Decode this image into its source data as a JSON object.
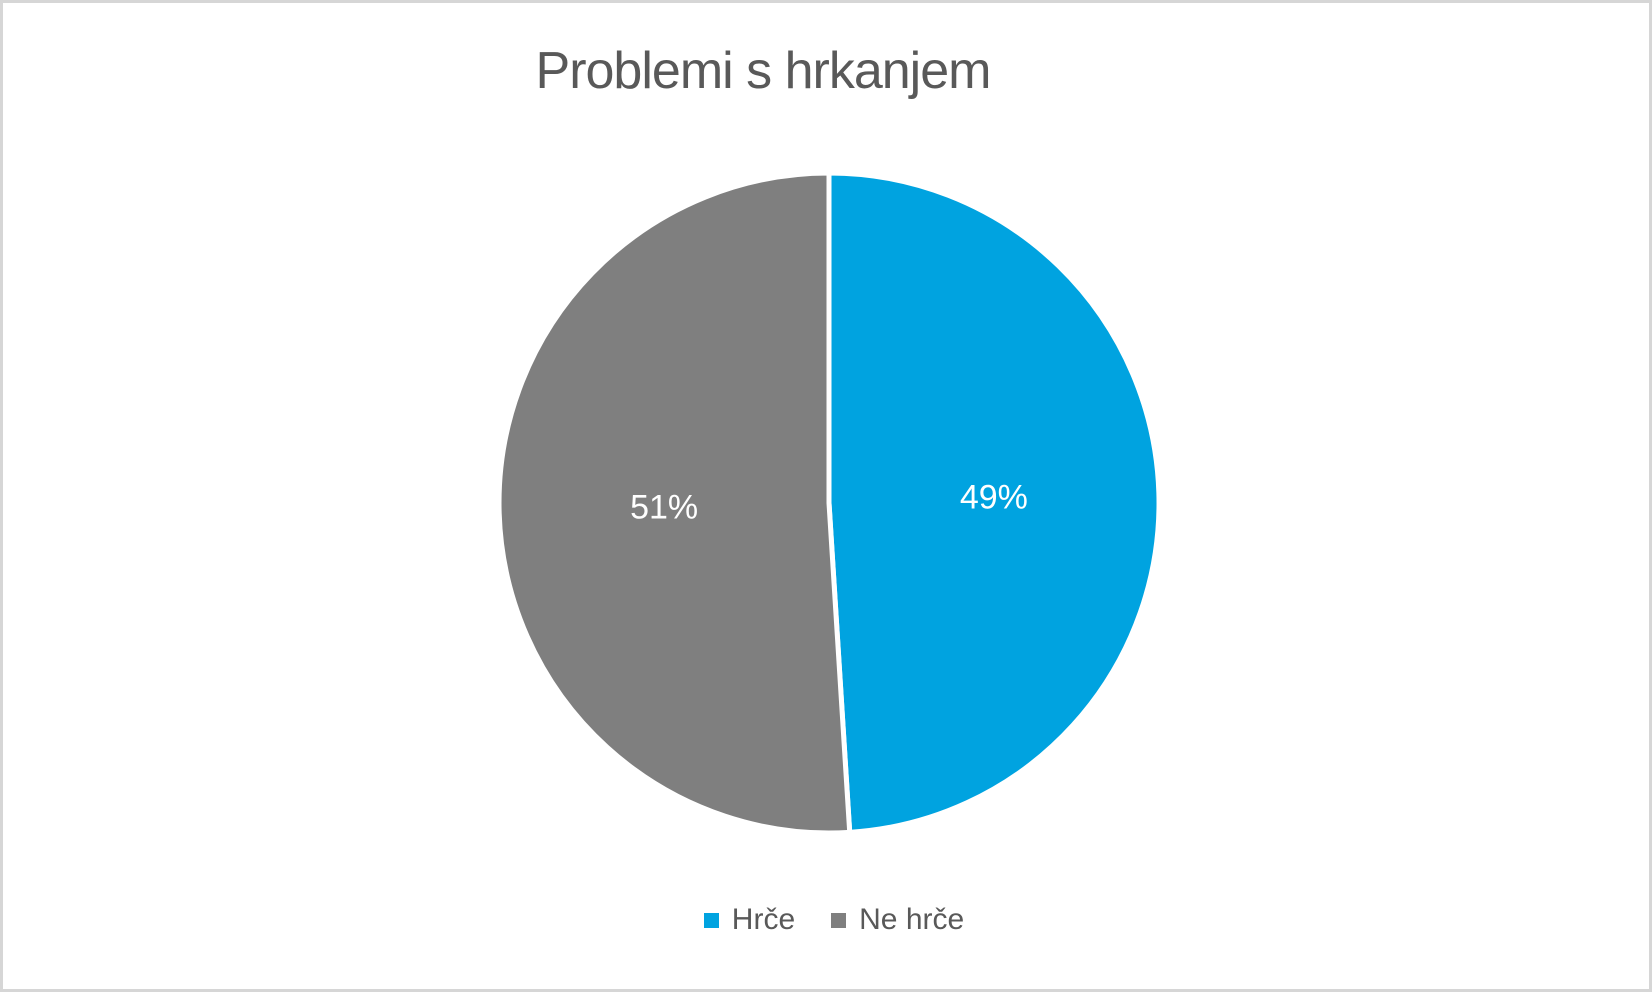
{
  "canvas": {
    "background": "#FFFFFF",
    "border_color": "#D6D6D6"
  },
  "chart_data": {
    "type": "pie",
    "title": "Problemi s hrkanjem",
    "categories": [
      "Hrče",
      "Ne hrče"
    ],
    "values": [
      49,
      51
    ],
    "units": "percent",
    "data_labels": [
      "49%",
      "51%"
    ],
    "colors": [
      "#00A3E0",
      "#7F7F7F"
    ],
    "slice_border_color": "#FFFFFF",
    "data_label_color": "#FFFFFF",
    "title_color": "#595959",
    "start_angle_deg": 0,
    "direction": "clockwise",
    "legend": {
      "position": "bottom",
      "entries": [
        "Hrče",
        "Ne hrče"
      ],
      "text_color": "#595959"
    }
  }
}
